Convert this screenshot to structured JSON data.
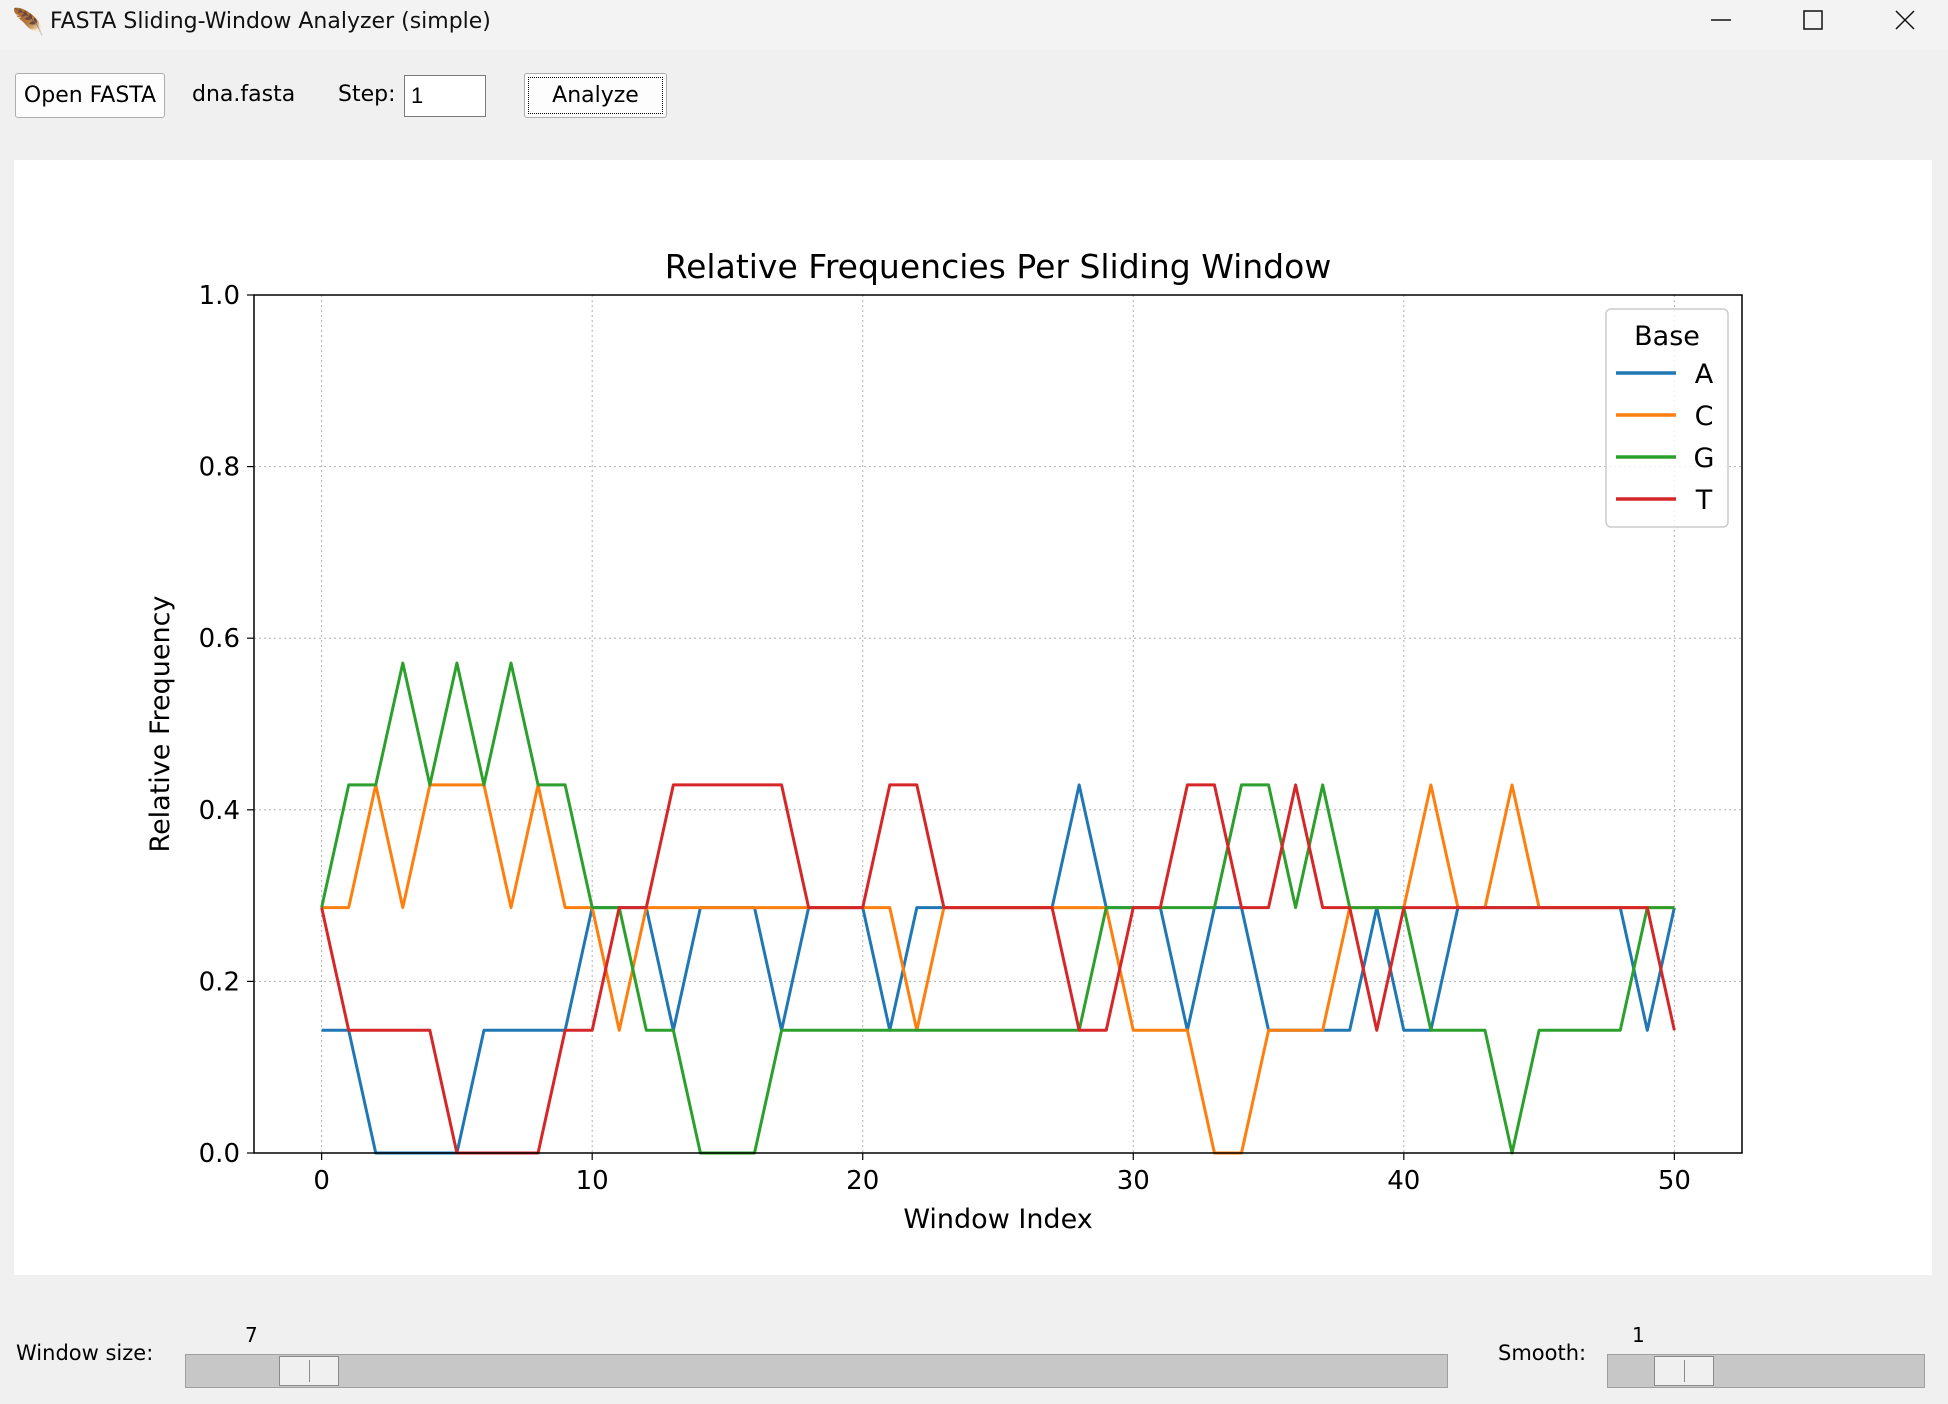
{
  "window": {
    "title": "FASTA Sliding-Window Analyzer (simple)",
    "app_icon": "feather-icon"
  },
  "toolbar": {
    "open_label": "Open FASTA",
    "file_name": "dna.fasta",
    "step_label": "Step:",
    "step_value": "1",
    "analyze_label": "Analyze"
  },
  "chart_data": {
    "type": "line",
    "title": "Relative Frequencies Per Sliding Window",
    "xlabel": "Window Index",
    "ylabel": "Relative Frequency",
    "xlim": [
      -2.5,
      52.5
    ],
    "ylim": [
      0,
      1
    ],
    "xticks": [
      "0",
      "10",
      "20",
      "30",
      "40",
      "50"
    ],
    "yticks": [
      "0.0",
      "0.2",
      "0.4",
      "0.6",
      "0.8",
      "1.0"
    ],
    "grid": true,
    "legend_title": "Base",
    "legend_position": "top-right",
    "x": [
      0,
      1,
      2,
      3,
      4,
      5,
      6,
      7,
      8,
      9,
      10,
      11,
      12,
      13,
      14,
      15,
      16,
      17,
      18,
      19,
      20,
      21,
      22,
      23,
      24,
      25,
      26,
      27,
      28,
      29,
      30,
      31,
      32,
      33,
      34,
      35,
      36,
      37,
      38,
      39,
      40,
      41,
      42,
      43,
      44,
      45,
      46,
      47,
      48,
      49,
      50
    ],
    "series": [
      {
        "name": "A",
        "color": "#1f77b4",
        "values": [
          0.143,
          0.143,
          0,
          0,
          0,
          0,
          0.143,
          0.143,
          0.143,
          0.143,
          0.286,
          0.286,
          0.286,
          0.143,
          0.286,
          0.286,
          0.286,
          0.143,
          0.286,
          0.286,
          0.286,
          0.143,
          0.286,
          0.286,
          0.286,
          0.286,
          0.286,
          0.286,
          0.429,
          0.286,
          0.286,
          0.286,
          0.143,
          0.286,
          0.286,
          0.143,
          0.143,
          0.143,
          0.143,
          0.286,
          0.143,
          0.143,
          0.286,
          0.286,
          0.286,
          0.286,
          0.286,
          0.286,
          0.286,
          0.143,
          0.286
        ]
      },
      {
        "name": "C",
        "color": "#ff7f0e",
        "values": [
          0.286,
          0.286,
          0.429,
          0.286,
          0.429,
          0.429,
          0.429,
          0.286,
          0.429,
          0.286,
          0.286,
          0.143,
          0.286,
          0.286,
          0.286,
          0.286,
          0.286,
          0.286,
          0.286,
          0.286,
          0.286,
          0.286,
          0.143,
          0.286,
          0.286,
          0.286,
          0.286,
          0.286,
          0.286,
          0.286,
          0.143,
          0.143,
          0.143,
          0,
          0,
          0.143,
          0.143,
          0.143,
          0.286,
          0.286,
          0.286,
          0.429,
          0.286,
          0.286,
          0.429,
          0.286,
          0.286,
          0.286,
          0.286,
          0.286,
          0.286
        ]
      },
      {
        "name": "G",
        "color": "#2ca02c",
        "values": [
          0.286,
          0.429,
          0.429,
          0.571,
          0.429,
          0.571,
          0.429,
          0.571,
          0.429,
          0.429,
          0.286,
          0.286,
          0.143,
          0.143,
          0,
          0,
          0,
          0.143,
          0.143,
          0.143,
          0.143,
          0.143,
          0.143,
          0.143,
          0.143,
          0.143,
          0.143,
          0.143,
          0.143,
          0.286,
          0.286,
          0.286,
          0.286,
          0.286,
          0.429,
          0.429,
          0.286,
          0.429,
          0.286,
          0.286,
          0.286,
          0.143,
          0.143,
          0.143,
          0,
          0.143,
          0.143,
          0.143,
          0.143,
          0.286,
          0.286
        ]
      },
      {
        "name": "T",
        "color": "#d62728",
        "values": [
          0.286,
          0.143,
          0.143,
          0.143,
          0.143,
          0,
          0,
          0,
          0,
          0.143,
          0.143,
          0.286,
          0.286,
          0.429,
          0.429,
          0.429,
          0.429,
          0.429,
          0.286,
          0.286,
          0.286,
          0.429,
          0.429,
          0.286,
          0.286,
          0.286,
          0.286,
          0.286,
          0.143,
          0.143,
          0.286,
          0.286,
          0.429,
          0.429,
          0.286,
          0.286,
          0.429,
          0.286,
          0.286,
          0.143,
          0.286,
          0.286,
          0.286,
          0.286,
          0.286,
          0.286,
          0.286,
          0.286,
          0.286,
          0.286,
          0.143
        ]
      }
    ]
  },
  "controls": {
    "window_label": "Window size:",
    "window_value": "7",
    "window_fraction": 0.05,
    "smooth_label": "Smooth:",
    "smooth_value": "1",
    "smooth_fraction": 0.05
  }
}
